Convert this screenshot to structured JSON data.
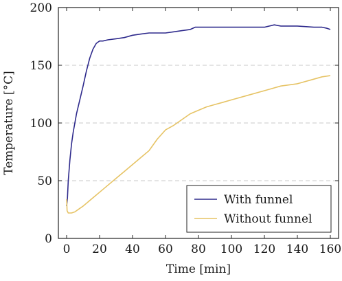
{
  "chart_data": {
    "type": "line",
    "xlabel": "Time [min]",
    "ylabel": "Temperature [°C]",
    "xlim": [
      -5,
      165
    ],
    "ylim": [
      0,
      200
    ],
    "xticks": [
      "0",
      "20",
      "40",
      "60",
      "80",
      "100",
      "120",
      "140",
      "160"
    ],
    "yticks": [
      "0",
      "50",
      "100",
      "150",
      "200"
    ],
    "grid": "horizontal dashed",
    "legend": "bottom-right",
    "series": [
      {
        "name": "With funnel",
        "color": "#2e2a8c",
        "x": [
          0,
          0.5,
          1,
          2,
          3,
          4,
          5,
          6,
          8,
          10,
          12,
          14,
          16,
          18,
          19,
          20,
          22,
          25,
          30,
          35,
          40,
          45,
          50,
          55,
          60,
          65,
          70,
          75,
          78,
          80,
          85,
          90,
          100,
          110,
          120,
          126,
          130,
          140,
          150,
          155,
          158,
          160
        ],
        "y": [
          28,
          35,
          50,
          68,
          82,
          92,
          100,
          108,
          120,
          132,
          145,
          156,
          164,
          169,
          170,
          171,
          171,
          172,
          173,
          174,
          176,
          177,
          178,
          178,
          178,
          179,
          180,
          181,
          183,
          183,
          183,
          183,
          183,
          183,
          183,
          185,
          184,
          184,
          183,
          183,
          182,
          181
        ]
      },
      {
        "name": "Without funnel",
        "color": "#e6c364",
        "x": [
          0,
          0.3,
          1,
          2,
          3,
          5,
          8,
          10,
          15,
          20,
          25,
          30,
          35,
          40,
          45,
          50,
          55,
          60,
          65,
          70,
          75,
          80,
          85,
          90,
          95,
          100,
          110,
          120,
          130,
          140,
          150,
          155,
          160
        ],
        "y": [
          34,
          24,
          22,
          22,
          22,
          23,
          26,
          28,
          34,
          40,
          46,
          52,
          58,
          64,
          70,
          76,
          86,
          94,
          98,
          103,
          108,
          111,
          114,
          116,
          118,
          120,
          124,
          128,
          132,
          134,
          138,
          140,
          141
        ]
      }
    ]
  }
}
